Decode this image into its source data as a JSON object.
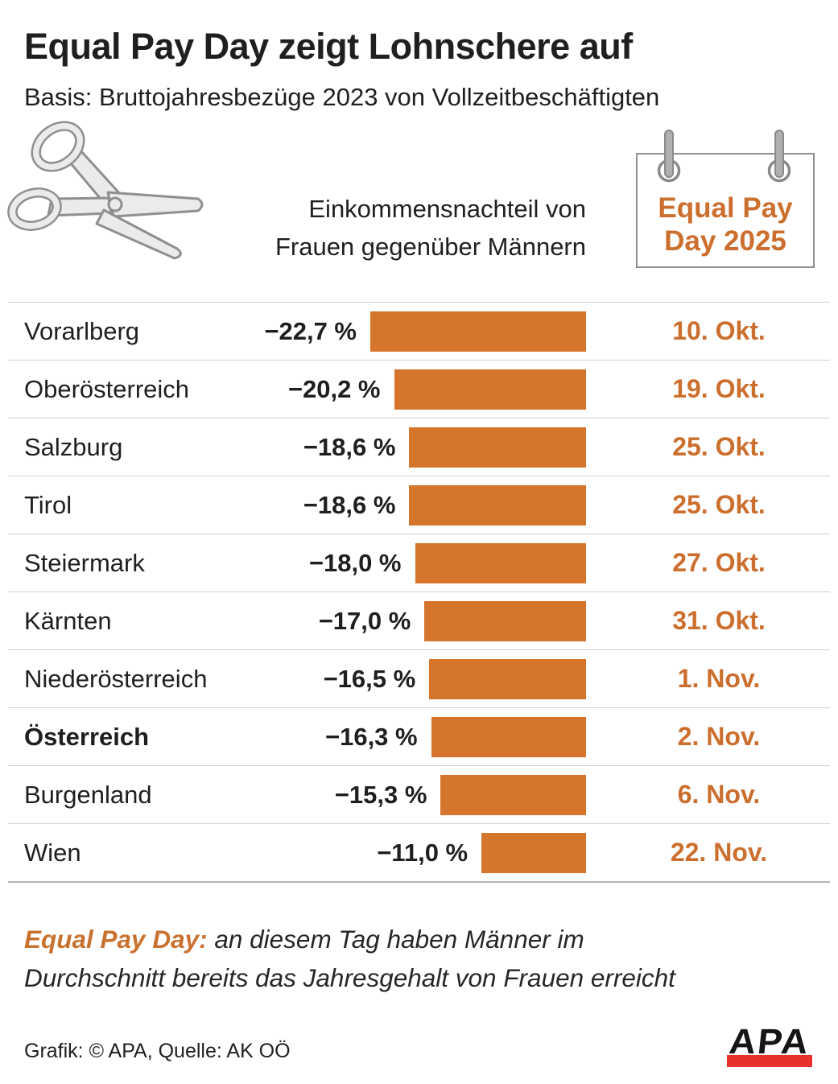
{
  "header": {
    "title": "Equal Pay Day zeigt Lohnschere auf",
    "subtitle": "Basis: Bruttojahresbezüge 2023 von Vollzeitbeschäftigten",
    "column_label_line1": "Einkommensnachteil von",
    "column_label_line2": "Frauen gegenüber Männern",
    "calendar": {
      "line1": "Equal Pay",
      "line2": "Day 2025"
    }
  },
  "chart_data": {
    "type": "bar",
    "orientation": "horizontal",
    "title": "Equal Pay Day zeigt Lohnschere auf",
    "subtitle": "Basis: Bruttojahresbezüge 2023 von Vollzeitbeschäftigten",
    "series_label": "Einkommensnachteil von Frauen gegenüber Männern",
    "unit": "%",
    "categories": [
      "Vorarlberg",
      "Oberösterreich",
      "Salzburg",
      "Tirol",
      "Steiermark",
      "Kärnten",
      "Niederösterreich",
      "Österreich",
      "Burgenland",
      "Wien"
    ],
    "values": [
      -22.7,
      -20.2,
      -18.6,
      -18.6,
      -18.0,
      -17.0,
      -16.5,
      -16.3,
      -15.3,
      -11.0
    ],
    "value_labels": [
      "−22,7 %",
      "−20,2 %",
      "−18,6 %",
      "−18,6 %",
      "−18,0 %",
      "−17,0 %",
      "−16,5 %",
      "−16,3 %",
      "−15,3 %",
      "−11,0 %"
    ],
    "equal_pay_day_2025": [
      "10. Okt.",
      "19. Okt.",
      "25. Okt.",
      "25. Okt.",
      "27. Okt.",
      "31. Okt.",
      "1. Nov.",
      "2. Nov.",
      "6. Nov.",
      "22. Nov."
    ],
    "highlighted_category": "Österreich",
    "bar_color": "#D5752C",
    "legend_position": "none",
    "grid": false
  },
  "table": {
    "rows": [
      {
        "region": "Vorarlberg",
        "value": -22.7,
        "value_label": "−22,7 %",
        "date": "10. Okt.",
        "bold": false
      },
      {
        "region": "Oberösterreich",
        "value": -20.2,
        "value_label": "−20,2 %",
        "date": "19. Okt.",
        "bold": false
      },
      {
        "region": "Salzburg",
        "value": -18.6,
        "value_label": "−18,6 %",
        "date": "25. Okt.",
        "bold": false
      },
      {
        "region": "Tirol",
        "value": -18.6,
        "value_label": "−18,6 %",
        "date": "25. Okt.",
        "bold": false
      },
      {
        "region": "Steiermark",
        "value": -18.0,
        "value_label": "−18,0 %",
        "date": "27. Okt.",
        "bold": false
      },
      {
        "region": "Kärnten",
        "value": -17.0,
        "value_label": "−17,0 %",
        "date": "31. Okt.",
        "bold": false
      },
      {
        "region": "Niederösterreich",
        "value": -16.5,
        "value_label": "−16,5 %",
        "date": "1. Nov.",
        "bold": false
      },
      {
        "region": "Österreich",
        "value": -16.3,
        "value_label": "−16,3 %",
        "date": "2. Nov.",
        "bold": true
      },
      {
        "region": "Burgenland",
        "value": -15.3,
        "value_label": "−15,3 %",
        "date": "6. Nov.",
        "bold": false
      },
      {
        "region": "Wien",
        "value": -11.0,
        "value_label": "−11,0 %",
        "date": "22. Nov.",
        "bold": false
      }
    ]
  },
  "footer": {
    "note_lead": "Equal Pay Day:",
    "note_line1_rest": " an diesem Tag haben Männer im",
    "note_line2": "Durchschnitt bereits das Jahresgehalt von Frauen erreicht",
    "credit": "Grafik: © APA, Quelle: AK OÖ",
    "logo_text": "APA"
  },
  "colors": {
    "bar_orange": "#D5752C",
    "text_orange": "#CC6F2E",
    "note_orange": "#C9712F",
    "logo_red": "#E8312A",
    "text_dark": "#1F1F1F",
    "separator_gray": "#CFCFCF",
    "icon_gray": "#8F8F8F"
  }
}
